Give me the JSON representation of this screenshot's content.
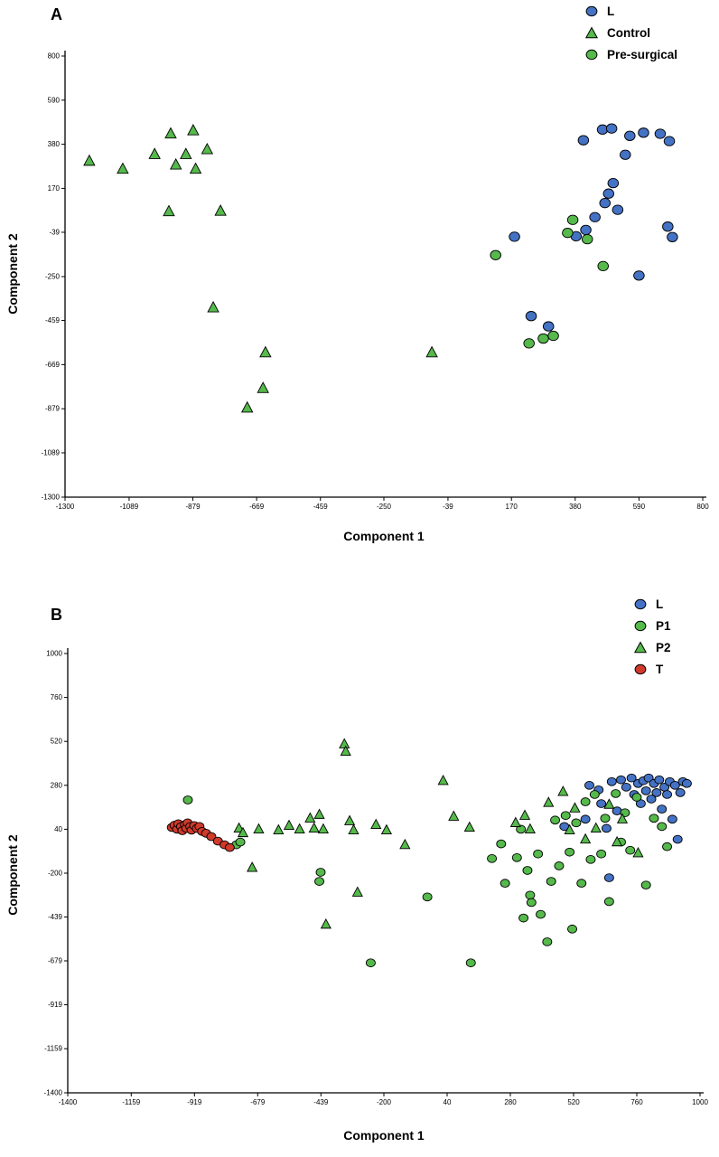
{
  "page": {
    "background": "#ffffff"
  },
  "chart_data": [
    {
      "type": "scatter",
      "panel_label": "A",
      "xlabel": "Component 1",
      "ylabel": "Component 2",
      "xlim": [
        -1300,
        800
      ],
      "ylim": [
        -1300,
        800
      ],
      "xticks": [
        -1300,
        -1089,
        -879,
        -669,
        -459,
        -250,
        -39,
        170,
        380,
        590,
        800
      ],
      "yticks": [
        800,
        590,
        380,
        170,
        -39,
        -250,
        -459,
        -669,
        -879,
        -1089,
        -1300
      ],
      "grid": false,
      "legend_position": "top-right",
      "series": [
        {
          "name": "L",
          "marker": "circle",
          "color": "#4472C4",
          "points": [
            [
              407,
              399
            ],
            [
              470,
              450
            ],
            [
              500,
              455
            ],
            [
              560,
              420
            ],
            [
              605,
              435
            ],
            [
              660,
              430
            ],
            [
              690,
              395
            ],
            [
              545,
              330
            ],
            [
              505,
              195
            ],
            [
              490,
              145
            ],
            [
              478,
              100
            ],
            [
              520,
              68
            ],
            [
              445,
              33
            ],
            [
              415,
              -28
            ],
            [
              383,
              -58
            ],
            [
              685,
              -12
            ],
            [
              700,
              -62
            ],
            [
              590,
              -245
            ],
            [
              180,
              -60
            ],
            [
              235,
              -438
            ],
            [
              292,
              -487
            ]
          ]
        },
        {
          "name": "Control",
          "marker": "triangle",
          "color": "#55B94B",
          "points": [
            [
              -1220,
              300
            ],
            [
              -1110,
              262
            ],
            [
              -1005,
              332
            ],
            [
              -952,
              430
            ],
            [
              -935,
              282
            ],
            [
              -902,
              332
            ],
            [
              -878,
              445
            ],
            [
              -870,
              262
            ],
            [
              -958,
              60
            ],
            [
              -832,
              355
            ],
            [
              -788,
              62
            ],
            [
              -812,
              -398
            ],
            [
              -640,
              -612
            ],
            [
              -648,
              -782
            ],
            [
              -700,
              -875
            ],
            [
              -92,
              -612
            ]
          ]
        },
        {
          "name": "Pre-surgical",
          "marker": "circle",
          "color": "#55B94B",
          "points": [
            [
              118,
              -148
            ],
            [
              372,
              20
            ],
            [
              355,
              -42
            ],
            [
              420,
              -72
            ],
            [
              472,
              -200
            ],
            [
              228,
              -568
            ],
            [
              275,
              -545
            ],
            [
              308,
              -532
            ]
          ]
        }
      ]
    },
    {
      "type": "scatter",
      "panel_label": "B",
      "xlabel": "Component 1",
      "ylabel": "Component 2",
      "xlim": [
        -1400,
        1000
      ],
      "ylim": [
        -1400,
        1000
      ],
      "xticks": [
        -1400,
        -1159,
        -919,
        -679,
        -439,
        -200,
        40,
        280,
        520,
        760,
        1000
      ],
      "yticks": [
        1000,
        760,
        520,
        280,
        40,
        -200,
        -439,
        -679,
        -919,
        -1159,
        -1400
      ],
      "grid": false,
      "legend_position": "top-right",
      "series": [
        {
          "name": "L",
          "marker": "circle",
          "color": "#4472C4",
          "points": [
            [
              485,
              55
            ],
            [
              565,
              95
            ],
            [
              580,
              280
            ],
            [
              615,
              255
            ],
            [
              625,
              180
            ],
            [
              645,
              45
            ],
            [
              655,
              -225
            ],
            [
              665,
              300
            ],
            [
              685,
              140
            ],
            [
              700,
              310
            ],
            [
              720,
              270
            ],
            [
              740,
              320
            ],
            [
              750,
              230
            ],
            [
              765,
              290
            ],
            [
              775,
              180
            ],
            [
              785,
              305
            ],
            [
              795,
              250
            ],
            [
              805,
              320
            ],
            [
              815,
              205
            ],
            [
              825,
              290
            ],
            [
              835,
              240
            ],
            [
              845,
              310
            ],
            [
              855,
              150
            ],
            [
              865,
              270
            ],
            [
              875,
              230
            ],
            [
              885,
              300
            ],
            [
              895,
              95
            ],
            [
              905,
              280
            ],
            [
              915,
              -15
            ],
            [
              925,
              240
            ],
            [
              935,
              300
            ],
            [
              950,
              290
            ]
          ]
        },
        {
          "name": "P1",
          "marker": "circle",
          "color": "#55B94B",
          "points": [
            [
              -944,
              200
            ],
            [
              -760,
              -45
            ],
            [
              -745,
              -30
            ],
            [
              -440,
              -195
            ],
            [
              -445,
              -245
            ],
            [
              -250,
              -690
            ],
            [
              -35,
              -330
            ],
            [
              130,
              -690
            ],
            [
              210,
              -120
            ],
            [
              245,
              -40
            ],
            [
              260,
              -255
            ],
            [
              305,
              -115
            ],
            [
              320,
              40
            ],
            [
              330,
              -445
            ],
            [
              345,
              -185
            ],
            [
              355,
              -320
            ],
            [
              360,
              -360
            ],
            [
              385,
              -95
            ],
            [
              395,
              -425
            ],
            [
              420,
              -575
            ],
            [
              435,
              -245
            ],
            [
              450,
              90
            ],
            [
              465,
              -160
            ],
            [
              490,
              115
            ],
            [
              505,
              -85
            ],
            [
              515,
              -505
            ],
            [
              530,
              75
            ],
            [
              550,
              -255
            ],
            [
              565,
              190
            ],
            [
              585,
              -125
            ],
            [
              600,
              230
            ],
            [
              625,
              -95
            ],
            [
              640,
              100
            ],
            [
              655,
              -355
            ],
            [
              680,
              235
            ],
            [
              700,
              -30
            ],
            [
              715,
              130
            ],
            [
              735,
              -75
            ],
            [
              760,
              215
            ],
            [
              795,
              -265
            ],
            [
              825,
              100
            ],
            [
              855,
              55
            ],
            [
              875,
              -55
            ]
          ]
        },
        {
          "name": "P2",
          "marker": "triangle",
          "color": "#55B94B",
          "points": [
            [
              -750,
              45
            ],
            [
              -735,
              20
            ],
            [
              -700,
              -170
            ],
            [
              -675,
              40
            ],
            [
              -600,
              35
            ],
            [
              -560,
              60
            ],
            [
              -520,
              40
            ],
            [
              -480,
              100
            ],
            [
              -465,
              45
            ],
            [
              -445,
              120
            ],
            [
              -430,
              40
            ],
            [
              -420,
              -480
            ],
            [
              -350,
              505
            ],
            [
              -345,
              465
            ],
            [
              -330,
              85
            ],
            [
              -315,
              35
            ],
            [
              -300,
              -305
            ],
            [
              -230,
              65
            ],
            [
              -190,
              35
            ],
            [
              -120,
              -45
            ],
            [
              25,
              305
            ],
            [
              65,
              110
            ],
            [
              125,
              50
            ],
            [
              300,
              75
            ],
            [
              335,
              115
            ],
            [
              355,
              40
            ],
            [
              425,
              185
            ],
            [
              480,
              245
            ],
            [
              505,
              35
            ],
            [
              525,
              155
            ],
            [
              565,
              -15
            ],
            [
              605,
              45
            ],
            [
              655,
              175
            ],
            [
              685,
              -30
            ],
            [
              705,
              95
            ],
            [
              765,
              -90
            ]
          ]
        },
        {
          "name": "T",
          "marker": "circle",
          "color": "#D03A2B",
          "points": [
            [
              -1005,
              50
            ],
            [
              -995,
              62
            ],
            [
              -985,
              40
            ],
            [
              -980,
              70
            ],
            [
              -970,
              55
            ],
            [
              -965,
              32
            ],
            [
              -955,
              65
            ],
            [
              -950,
              45
            ],
            [
              -945,
              75
            ],
            [
              -935,
              55
            ],
            [
              -930,
              35
            ],
            [
              -920,
              60
            ],
            [
              -910,
              45
            ],
            [
              -900,
              55
            ],
            [
              -890,
              28
            ],
            [
              -875,
              18
            ],
            [
              -855,
              0
            ],
            [
              -830,
              -25
            ],
            [
              -805,
              -45
            ],
            [
              -785,
              -60
            ]
          ]
        }
      ]
    }
  ]
}
